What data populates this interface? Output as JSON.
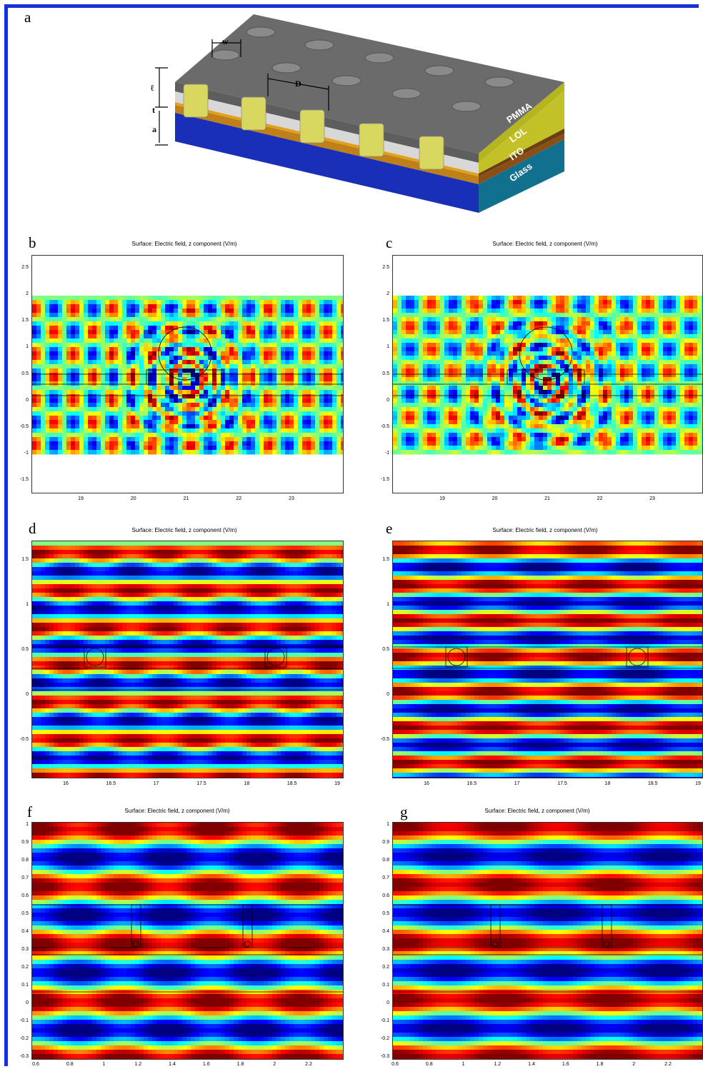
{
  "panels": {
    "a": {
      "letter": "a",
      "dimension_labels": {
        "w": "w",
        "d": "D",
        "l": "ℓ",
        "t": "t",
        "a": "a"
      },
      "layer_labels": {
        "pmma": "PMMA",
        "lol": "LOL",
        "ito": "ITO",
        "glass": "Glass"
      }
    },
    "b": {
      "letter": "b",
      "title": "Surface: Electric field, z component (V/m)"
    },
    "c": {
      "letter": "c",
      "title": "Surface: Electric field, z component (V/m)"
    },
    "d": {
      "letter": "d",
      "title": "Surface: Electric field, z component (V/m)"
    },
    "e": {
      "letter": "e",
      "title": "Surface: Electric field, z component (V/m)"
    },
    "f": {
      "letter": "f",
      "title": "Surface: Electric field, z component (V/m)"
    },
    "g": {
      "letter": "g",
      "title": "Surface: Electric field, z component (V/m)"
    }
  },
  "ticks": {
    "bc_y": [
      "2.5",
      "2",
      "1.5",
      "1",
      "0.5",
      "0",
      "-0.5",
      "-1",
      "-1.5"
    ],
    "bc_x": [
      "19",
      "20",
      "21",
      "22",
      "23"
    ],
    "de_y": [
      "1.5",
      "1",
      "0.5",
      "0",
      "-0.5"
    ],
    "de_x": [
      "16",
      "16.5",
      "17",
      "17.5",
      "18",
      "18.5",
      "19"
    ],
    "fg_y": [
      "1",
      "0.9",
      "0.8",
      "0.7",
      "0.6",
      "0.5",
      "0.4",
      "0.3",
      "0.2",
      "0.1",
      "0",
      "-0.1",
      "-0.2",
      "-0.3"
    ],
    "fg_x": [
      "0.6",
      "0.8",
      "1",
      "1.2",
      "1.4",
      "1.6",
      "1.8",
      "2",
      "2.2"
    ]
  },
  "colors": {
    "frame": "#1530d8",
    "colormap": [
      "#00008f",
      "#0040ff",
      "#00c8ff",
      "#7fff7f",
      "#ffff00",
      "#ff8000",
      "#d00000",
      "#800000"
    ],
    "pmma": "#c9c919",
    "glass": "#0f6f94",
    "ito": "#7a4a1a",
    "substrate": "#1530c8"
  }
}
